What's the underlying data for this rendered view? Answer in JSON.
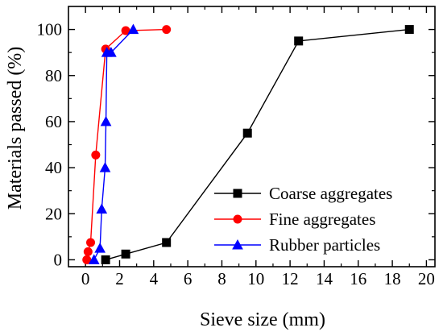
{
  "chart_data": {
    "type": "line",
    "title": "",
    "xlabel": "Sieve size (mm)",
    "ylabel": "Materials passed (%)",
    "xlim": [
      -1,
      20.5
    ],
    "ylim": [
      -3,
      110
    ],
    "x_ticks": [
      0,
      2,
      4,
      6,
      8,
      10,
      12,
      14,
      16,
      18,
      20
    ],
    "y_ticks": [
      0,
      20,
      40,
      60,
      80,
      100
    ],
    "grid": false,
    "legend_position": "bottom-right",
    "series": [
      {
        "name": "Coarse aggregates",
        "color": "#000000",
        "marker": "square",
        "x": [
          1.18,
          2.36,
          4.75,
          9.5,
          12.5,
          19.0
        ],
        "y": [
          0,
          2.5,
          7.5,
          55,
          95,
          100
        ]
      },
      {
        "name": "Fine aggregates",
        "color": "#ff0000",
        "marker": "circle",
        "x": [
          0.075,
          0.15,
          0.3,
          0.6,
          1.18,
          2.36,
          4.75
        ],
        "y": [
          0,
          3.5,
          7.5,
          45.5,
          91.5,
          99.5,
          100
        ]
      },
      {
        "name": "Rubber particles",
        "color": "#0000ff",
        "marker": "triangle",
        "x": [
          0.5,
          0.85,
          0.95,
          1.15,
          1.2,
          1.25,
          1.5,
          2.8
        ],
        "y": [
          0,
          5,
          22,
          40,
          60,
          90,
          90,
          100
        ]
      }
    ]
  }
}
